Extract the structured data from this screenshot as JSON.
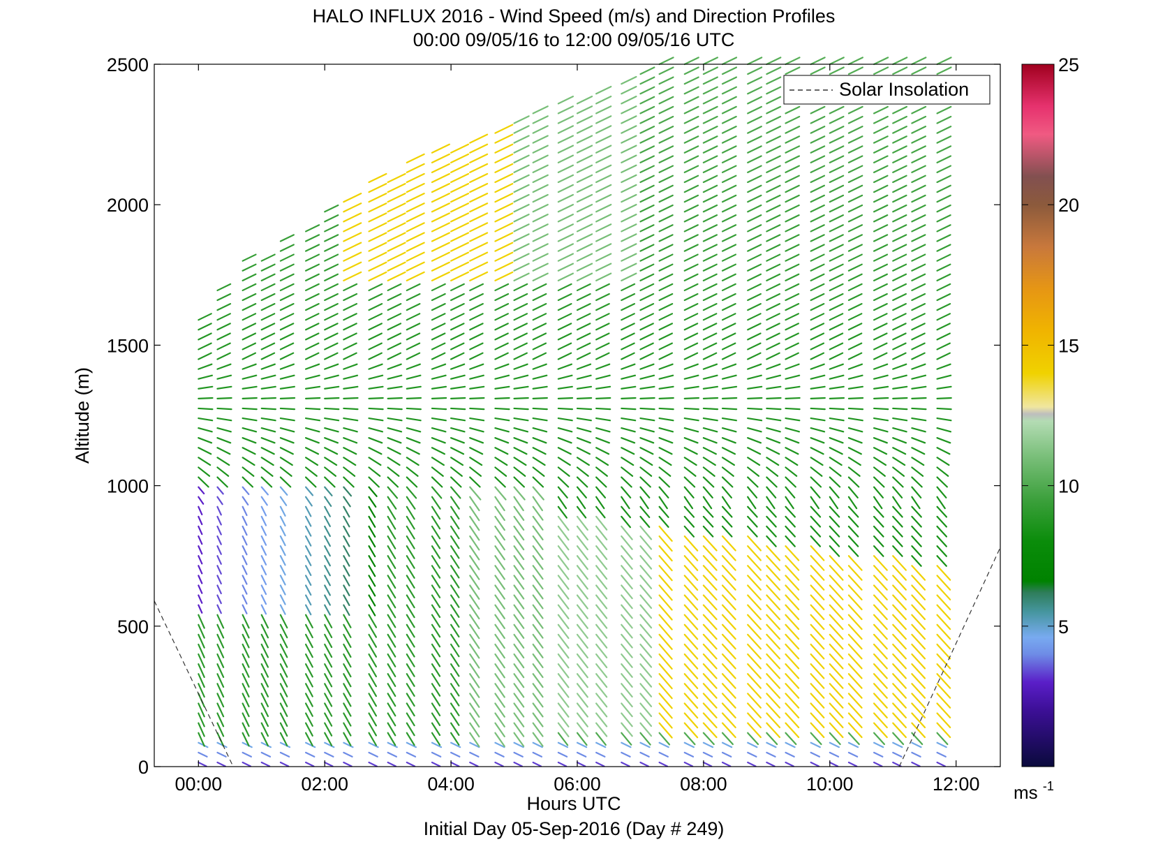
{
  "chart_data": {
    "type": "barb-profile",
    "title": "HALO INFLUX 2016 - Wind Speed (m/s) and Direction Profiles",
    "subtitle": "00:00 09/05/16 to 12:00 09/05/16  UTC",
    "xlabel": "Hours UTC",
    "ylabel": "Altitude (m)",
    "footer": "Initial Day 05-Sep-2016 (Day # 249)",
    "xlim": [
      -0.7,
      12.7
    ],
    "ylim": [
      0,
      2500
    ],
    "xticks": [
      0,
      2,
      4,
      6,
      8,
      10,
      12
    ],
    "xtick_labels": [
      "00:00",
      "02:00",
      "04:00",
      "06:00",
      "08:00",
      "10:00",
      "12:00"
    ],
    "yticks": [
      0,
      500,
      1000,
      1500,
      2000,
      2500
    ],
    "ytick_labels": [
      "0",
      "500",
      "1000",
      "1500",
      "2000",
      "2500"
    ],
    "legend": {
      "entries": [
        "Solar Insolation"
      ],
      "placement": "top-right",
      "line_style": "dashed"
    },
    "colorbar": {
      "range": [
        0,
        25
      ],
      "ticks": [
        5,
        10,
        15,
        20,
        25
      ],
      "tick_labels": [
        "5",
        "10",
        "15",
        "20",
        "25"
      ],
      "unit_label": "ms",
      "unit_exponent": "-1",
      "stops": [
        {
          "v": 0,
          "c": "#0a0a3c"
        },
        {
          "v": 2,
          "c": "#3c0f96"
        },
        {
          "v": 3,
          "c": "#5a1ec8"
        },
        {
          "v": 4,
          "c": "#6e8ce6"
        },
        {
          "v": 4.6,
          "c": "#78aaf0"
        },
        {
          "v": 5.5,
          "c": "#4696a0"
        },
        {
          "v": 6.2,
          "c": "#2e7d5a"
        },
        {
          "v": 6.6,
          "c": "#008200"
        },
        {
          "v": 8,
          "c": "#0a8c0a"
        },
        {
          "v": 9.5,
          "c": "#3ca03c"
        },
        {
          "v": 11,
          "c": "#78be78"
        },
        {
          "v": 12.3,
          "c": "#b4dcb4"
        },
        {
          "v": 12.55,
          "c": "#bebebe"
        },
        {
          "v": 12.8,
          "c": "#f0e6a0"
        },
        {
          "v": 14,
          "c": "#f0d200"
        },
        {
          "v": 15.5,
          "c": "#f0b400"
        },
        {
          "v": 17,
          "c": "#e69614"
        },
        {
          "v": 18.5,
          "c": "#c8783c"
        },
        {
          "v": 20,
          "c": "#8c5a3c"
        },
        {
          "v": 21,
          "c": "#825050"
        },
        {
          "v": 22.5,
          "c": "#f05a82"
        },
        {
          "v": 23.5,
          "c": "#e6326e"
        },
        {
          "v": 25,
          "c": "#a0001e"
        }
      ]
    },
    "solar_insolation": {
      "descending": [
        [
          -0.7,
          590
        ],
        [
          0.55,
          0
        ]
      ],
      "ascending": [
        [
          11.1,
          0
        ],
        [
          12.7,
          780
        ]
      ]
    },
    "profiles": {
      "times": [
        0,
        0.3,
        0.7,
        1.0,
        1.3,
        1.7,
        2.0,
        2.3,
        2.7,
        3.0,
        3.3,
        3.7,
        4.0,
        4.3,
        4.7,
        5.0,
        5.3,
        5.7,
        6.0,
        6.3,
        6.7,
        7.0,
        7.3,
        7.7,
        8.0,
        8.3,
        8.7,
        9.0,
        9.3,
        9.7,
        10.0,
        10.3,
        10.7,
        11.0,
        11.3,
        11.7
      ],
      "altitude_step_m": 35,
      "top_altitude_m": [
        1620,
        1720,
        1800,
        1820,
        1870,
        1930,
        1990,
        2030,
        2080,
        2110,
        2150,
        2190,
        2210,
        2250,
        2280,
        2310,
        2330,
        2370,
        2390,
        2420,
        2460,
        2490,
        2500,
        2500,
        2500,
        2500,
        2500,
        2500,
        2500,
        2500,
        2500,
        2500,
        2500,
        2500,
        2500,
        2500
      ],
      "speed_regimes_m_s": {
        "surface_0_100": 3,
        "low_100_1000_early": 9,
        "low_100_900_late": 14,
        "transition_late": 10,
        "mid_1000_1600": 8.5,
        "upper_jet_early": 14,
        "upper_late": 9
      },
      "direction_regimes": {
        "surface": "northerly-downslope",
        "low_levels": "northwesterly",
        "upper_levels": "southwesterly"
      }
    }
  }
}
